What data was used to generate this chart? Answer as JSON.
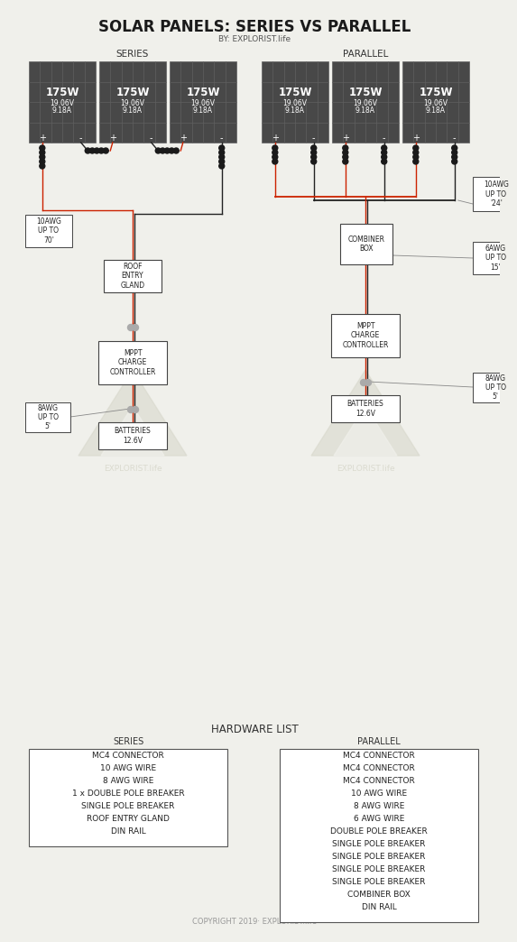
{
  "title": "SOLAR PANELS: SERIES VS PARALLEL",
  "subtitle": "BY: EXPLORIST.life",
  "copyright": "COPYRIGHT 2019· EXPLORIST.life",
  "bg_color": "#f0f0eb",
  "panel_color": "#484848",
  "panel_line_color": "#606060",
  "panel_text_color": "#ffffff",
  "wire_red": "#cc2200",
  "wire_black": "#222222",
  "box_color": "#ffffff",
  "box_edge": "#444444",
  "watermark_color": "#d8d8cc",
  "series_label": "SERIES",
  "parallel_label": "PARALLEL",
  "panel_watt": "175W",
  "panel_volt": "19.06V",
  "panel_amp": "9.18A",
  "series_wire_label": "10AWG\nUP TO\n70'",
  "series_wire2_label": "8AWG\nUP TO\n5'",
  "series_gland_label": "ROOF\nENTRY\nGLAND",
  "series_mppt_label": "MPPT\nCHARGE\nCONTROLLER",
  "series_battery_label": "BATTERIES\n12.6V",
  "parallel_wire1_label": "10AWG\nUP TO\n'24'",
  "parallel_wire2_label": "6AWG\nUP TO\n15'",
  "parallel_wire3_label": "8AWG\nUP TO\n5'",
  "parallel_mppt_label": "MPPT\nCHARGE\nCONTROLLER",
  "parallel_battery_label": "BATTERIES\n12.6V",
  "hardware_title": "HARDWARE LIST",
  "series_hw_title": "SERIES",
  "parallel_hw_title": "PARALLEL",
  "series_hw_items": [
    "MC4 CONNECTOR",
    "10 AWG WIRE",
    "8 AWG WIRE",
    "1 x DOUBLE POLE BREAKER",
    "SINGLE POLE BREAKER",
    "ROOF ENTRY GLAND",
    "DIN RAIL"
  ],
  "parallel_hw_items": [
    "MC4 CONNECTOR",
    "MC4 CONNECTOR",
    "MC4 CONNECTOR",
    "10 AWG WIRE",
    "8 AWG WIRE",
    "6 AWG WIRE",
    "DOUBLE POLE BREAKER",
    "SINGLE POLE BREAKER",
    "SINGLE POLE BREAKER",
    "SINGLE POLE BREAKER",
    "SINGLE POLE BREAKER",
    "COMBINER BOX",
    "DIN RAIL"
  ]
}
